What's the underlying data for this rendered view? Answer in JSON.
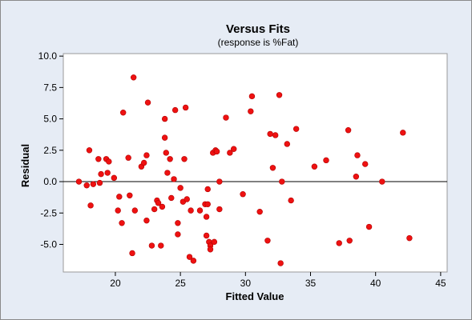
{
  "chart_data": {
    "type": "scatter",
    "title": "Versus Fits",
    "subtitle": "(response is %Fat)",
    "xlabel": "Fitted Value",
    "ylabel": "Residual",
    "xlim": [
      16,
      45.5
    ],
    "ylim": [
      -7.2,
      10.2
    ],
    "xticks": [
      20,
      25,
      30,
      35,
      40,
      45
    ],
    "yticks": [
      -5.0,
      -2.5,
      0.0,
      2.5,
      5.0,
      7.5,
      10.0
    ],
    "ytick_labels": [
      "-5.0",
      "-2.5",
      "0.0",
      "2.5",
      "5.0",
      "7.5",
      "10.0"
    ],
    "reference_line": 0,
    "grid": false,
    "colors": {
      "frame_background": "#e6ecf5",
      "plot_background": "#ffffff",
      "point": "#ee1111",
      "reference_line": "#000000"
    },
    "points": [
      [
        17.2,
        0.0
      ],
      [
        17.8,
        -0.3
      ],
      [
        18.0,
        2.5
      ],
      [
        18.1,
        -1.9
      ],
      [
        18.3,
        -0.2
      ],
      [
        18.7,
        1.8
      ],
      [
        18.8,
        -0.1
      ],
      [
        18.9,
        0.6
      ],
      [
        19.3,
        1.8
      ],
      [
        19.4,
        0.7
      ],
      [
        19.5,
        1.6
      ],
      [
        19.9,
        0.3
      ],
      [
        20.2,
        -2.3
      ],
      [
        20.3,
        -1.2
      ],
      [
        20.5,
        -3.3
      ],
      [
        20.6,
        5.5
      ],
      [
        21.0,
        1.9
      ],
      [
        21.1,
        -1.1
      ],
      [
        21.3,
        -5.7
      ],
      [
        21.4,
        8.3
      ],
      [
        21.5,
        -2.3
      ],
      [
        22.0,
        1.2
      ],
      [
        22.2,
        1.5
      ],
      [
        22.4,
        2.1
      ],
      [
        22.4,
        -3.1
      ],
      [
        22.5,
        6.3
      ],
      [
        22.8,
        -5.1
      ],
      [
        23.0,
        -2.2
      ],
      [
        23.2,
        -1.5
      ],
      [
        23.3,
        -1.7
      ],
      [
        23.5,
        -5.1
      ],
      [
        23.6,
        -2.0
      ],
      [
        23.8,
        3.5
      ],
      [
        23.8,
        5.0
      ],
      [
        23.9,
        2.3
      ],
      [
        24.0,
        0.7
      ],
      [
        24.2,
        1.8
      ],
      [
        24.3,
        -1.3
      ],
      [
        24.5,
        0.2
      ],
      [
        24.6,
        5.7
      ],
      [
        24.8,
        -3.3
      ],
      [
        24.8,
        -4.2
      ],
      [
        25.0,
        -0.5
      ],
      [
        25.2,
        -1.6
      ],
      [
        25.3,
        1.8
      ],
      [
        25.4,
        5.9
      ],
      [
        25.5,
        -1.4
      ],
      [
        25.7,
        -6.0
      ],
      [
        25.8,
        -2.3
      ],
      [
        26.0,
        -6.3
      ],
      [
        26.5,
        -2.3
      ],
      [
        26.9,
        -1.8
      ],
      [
        27.0,
        -4.3
      ],
      [
        27.0,
        -2.8
      ],
      [
        27.1,
        -0.6
      ],
      [
        27.1,
        -1.8
      ],
      [
        27.2,
        -4.8
      ],
      [
        27.3,
        -5.1
      ],
      [
        27.3,
        -5.4
      ],
      [
        27.5,
        2.3
      ],
      [
        27.6,
        -4.8
      ],
      [
        27.7,
        2.5
      ],
      [
        27.8,
        2.4
      ],
      [
        28.0,
        -2.2
      ],
      [
        28.0,
        0.0
      ],
      [
        28.5,
        5.1
      ],
      [
        28.8,
        2.3
      ],
      [
        29.1,
        2.6
      ],
      [
        29.8,
        -1.0
      ],
      [
        30.4,
        5.6
      ],
      [
        30.5,
        6.8
      ],
      [
        31.1,
        -2.4
      ],
      [
        31.7,
        -4.7
      ],
      [
        31.9,
        3.8
      ],
      [
        32.1,
        1.1
      ],
      [
        32.3,
        3.7
      ],
      [
        32.6,
        6.9
      ],
      [
        32.7,
        -6.5
      ],
      [
        32.8,
        0.0
      ],
      [
        33.2,
        3.0
      ],
      [
        33.5,
        -1.5
      ],
      [
        33.9,
        4.2
      ],
      [
        35.3,
        1.2
      ],
      [
        36.2,
        1.7
      ],
      [
        37.2,
        -4.9
      ],
      [
        37.9,
        4.1
      ],
      [
        38.0,
        -4.7
      ],
      [
        38.5,
        0.4
      ],
      [
        38.6,
        2.1
      ],
      [
        39.2,
        1.4
      ],
      [
        39.5,
        -3.6
      ],
      [
        40.5,
        0.0
      ],
      [
        42.1,
        3.9
      ],
      [
        42.6,
        -4.5
      ]
    ]
  }
}
